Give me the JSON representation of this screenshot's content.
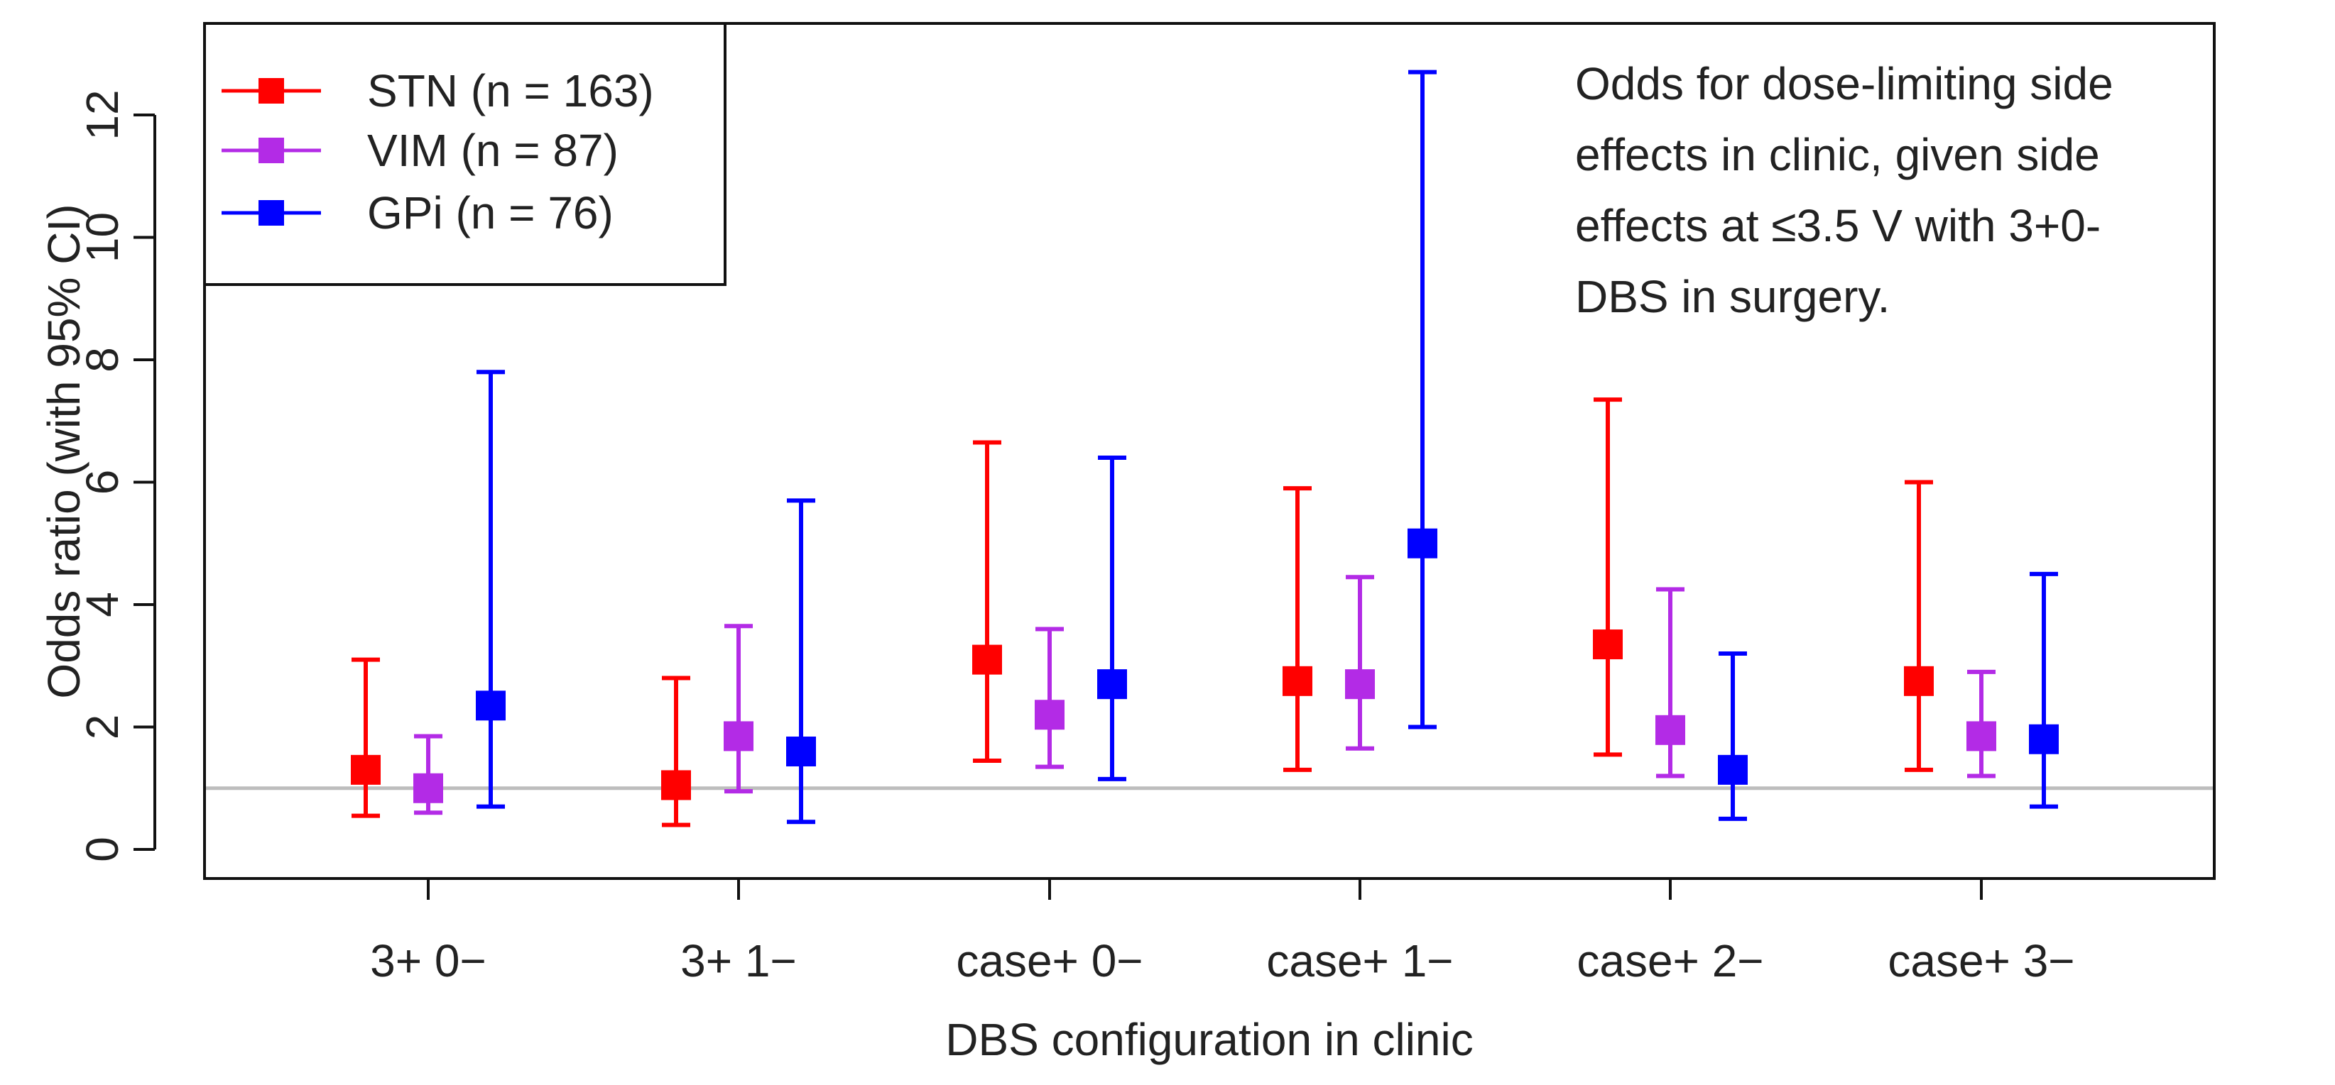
{
  "chart_data": {
    "type": "scatter",
    "title": "",
    "xlabel": "DBS configuration in clinic",
    "ylabel": "Odds  ratio (with 95% CI)",
    "categories": [
      "3+ 0−",
      "3+ 1−",
      "case+ 0−",
      "case+ 1−",
      "case+ 2−",
      "case+ 3−"
    ],
    "ylim": [
      -0.5,
      13.5
    ],
    "yticks": [
      0,
      2,
      4,
      6,
      8,
      10,
      12
    ],
    "reference_line": 1,
    "reference_color": "#bdbdbd",
    "annotation": [
      "Odds for dose-limiting side",
      "effects in clinic, given side",
      "effects at ≤3.5 V with 3+0-",
      "DBS in surgery."
    ],
    "legend_position": "top-left",
    "series": [
      {
        "name": "STN (n = 163)",
        "color": "#ff0000",
        "values": [
          1.3,
          1.05,
          3.1,
          2.75,
          3.35,
          2.75
        ],
        "lower": [
          0.55,
          0.4,
          1.45,
          1.3,
          1.55,
          1.3
        ],
        "upper": [
          3.1,
          2.8,
          6.65,
          5.9,
          7.35,
          6.0
        ]
      },
      {
        "name": "VIM (n = 87)",
        "color": "#b32be6",
        "values": [
          1.0,
          1.85,
          2.2,
          2.7,
          1.95,
          1.85
        ],
        "lower": [
          0.6,
          0.95,
          1.35,
          1.65,
          1.2,
          1.2
        ],
        "upper": [
          1.85,
          3.65,
          3.6,
          4.45,
          4.25,
          2.9
        ]
      },
      {
        "name": "GPi (n = 76)",
        "color": "#0000ff",
        "values": [
          2.35,
          1.6,
          2.7,
          5.0,
          1.3,
          1.8
        ],
        "lower": [
          0.7,
          0.45,
          1.15,
          2.0,
          0.5,
          0.7
        ],
        "upper": [
          7.8,
          5.7,
          6.4,
          12.7,
          3.2,
          4.5
        ]
      }
    ]
  }
}
